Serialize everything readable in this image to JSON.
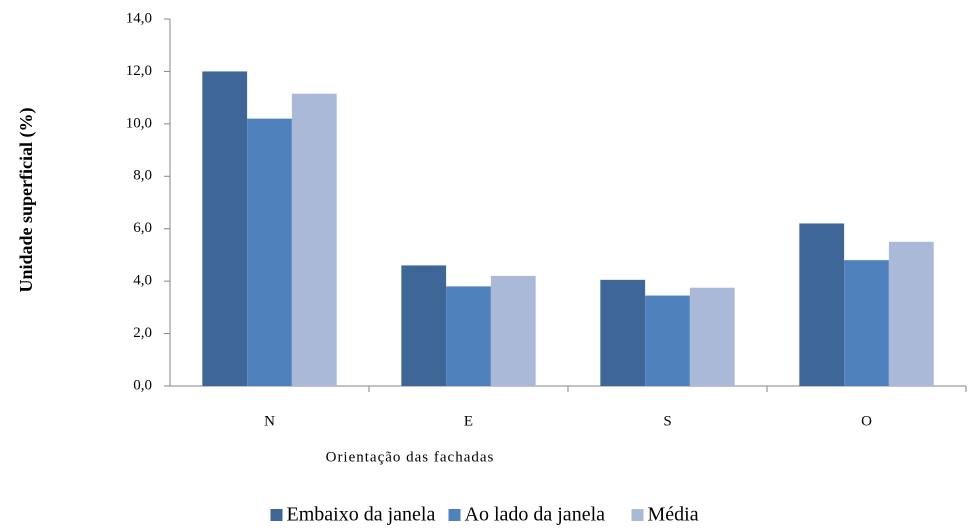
{
  "chart_data": {
    "type": "bar",
    "x_label": "Orientação das fachadas",
    "y_label": "Unidade superficial (%)",
    "categories": [
      "N",
      "E",
      "S",
      "O"
    ],
    "series": [
      {
        "name": "Embaixo da janela",
        "color": "#3e6697",
        "values": [
          12.0,
          4.6,
          4.05,
          6.2
        ]
      },
      {
        "name": "Ao lado da janela",
        "color": "#4f81bd",
        "values": [
          10.2,
          3.8,
          3.45,
          4.8
        ]
      },
      {
        "name": "Média",
        "color": "#aab9d8",
        "values": [
          11.15,
          4.2,
          3.75,
          5.5
        ]
      }
    ],
    "ylim": [
      0,
      14
    ],
    "yticks": [
      {
        "value": 0,
        "label": "0,0"
      },
      {
        "value": 2,
        "label": "2,0"
      },
      {
        "value": 4,
        "label": "4,0"
      },
      {
        "value": 6,
        "label": "6,0"
      },
      {
        "value": 8,
        "label": "8,0"
      },
      {
        "value": 10,
        "label": "10,0"
      },
      {
        "value": 12,
        "label": "12,0"
      },
      {
        "value": 14,
        "label": "14,0"
      }
    ],
    "grid": false,
    "legend": "bottom"
  }
}
